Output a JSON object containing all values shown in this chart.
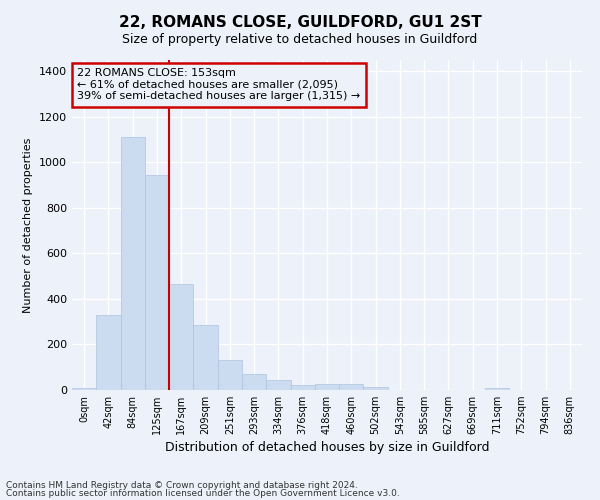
{
  "title": "22, ROMANS CLOSE, GUILDFORD, GU1 2ST",
  "subtitle": "Size of property relative to detached houses in Guildford",
  "xlabel": "Distribution of detached houses by size in Guildford",
  "ylabel": "Number of detached properties",
  "footnote1": "Contains HM Land Registry data © Crown copyright and database right 2024.",
  "footnote2": "Contains public sector information licensed under the Open Government Licence v3.0.",
  "bar_labels": [
    "0sqm",
    "42sqm",
    "84sqm",
    "125sqm",
    "167sqm",
    "209sqm",
    "251sqm",
    "293sqm",
    "334sqm",
    "376sqm",
    "418sqm",
    "460sqm",
    "502sqm",
    "543sqm",
    "585sqm",
    "627sqm",
    "669sqm",
    "711sqm",
    "752sqm",
    "794sqm",
    "836sqm"
  ],
  "bar_values": [
    10,
    330,
    1110,
    945,
    465,
    285,
    130,
    70,
    42,
    22,
    27,
    25,
    15,
    0,
    0,
    0,
    0,
    10,
    0,
    0,
    0
  ],
  "bar_color": "#ccdcf0",
  "bar_edgecolor": "#adc4e0",
  "ylim": [
    0,
    1450
  ],
  "yticks": [
    0,
    200,
    400,
    600,
    800,
    1000,
    1200,
    1400
  ],
  "property_line_x": 3.5,
  "annotation_text_line1": "22 ROMANS CLOSE: 153sqm",
  "annotation_text_line2": "← 61% of detached houses are smaller (2,095)",
  "annotation_text_line3": "39% of semi-detached houses are larger (1,315) →",
  "annotation_box_color": "#cc0000",
  "vline_color": "#cc0000",
  "background_color": "#edf2fa",
  "grid_color": "#ffffff",
  "title_fontsize": 11,
  "subtitle_fontsize": 9,
  "ylabel_fontsize": 8,
  "xlabel_fontsize": 9,
  "tick_fontsize": 8,
  "xtick_fontsize": 7,
  "footnote_fontsize": 6.5,
  "annotation_fontsize": 8
}
